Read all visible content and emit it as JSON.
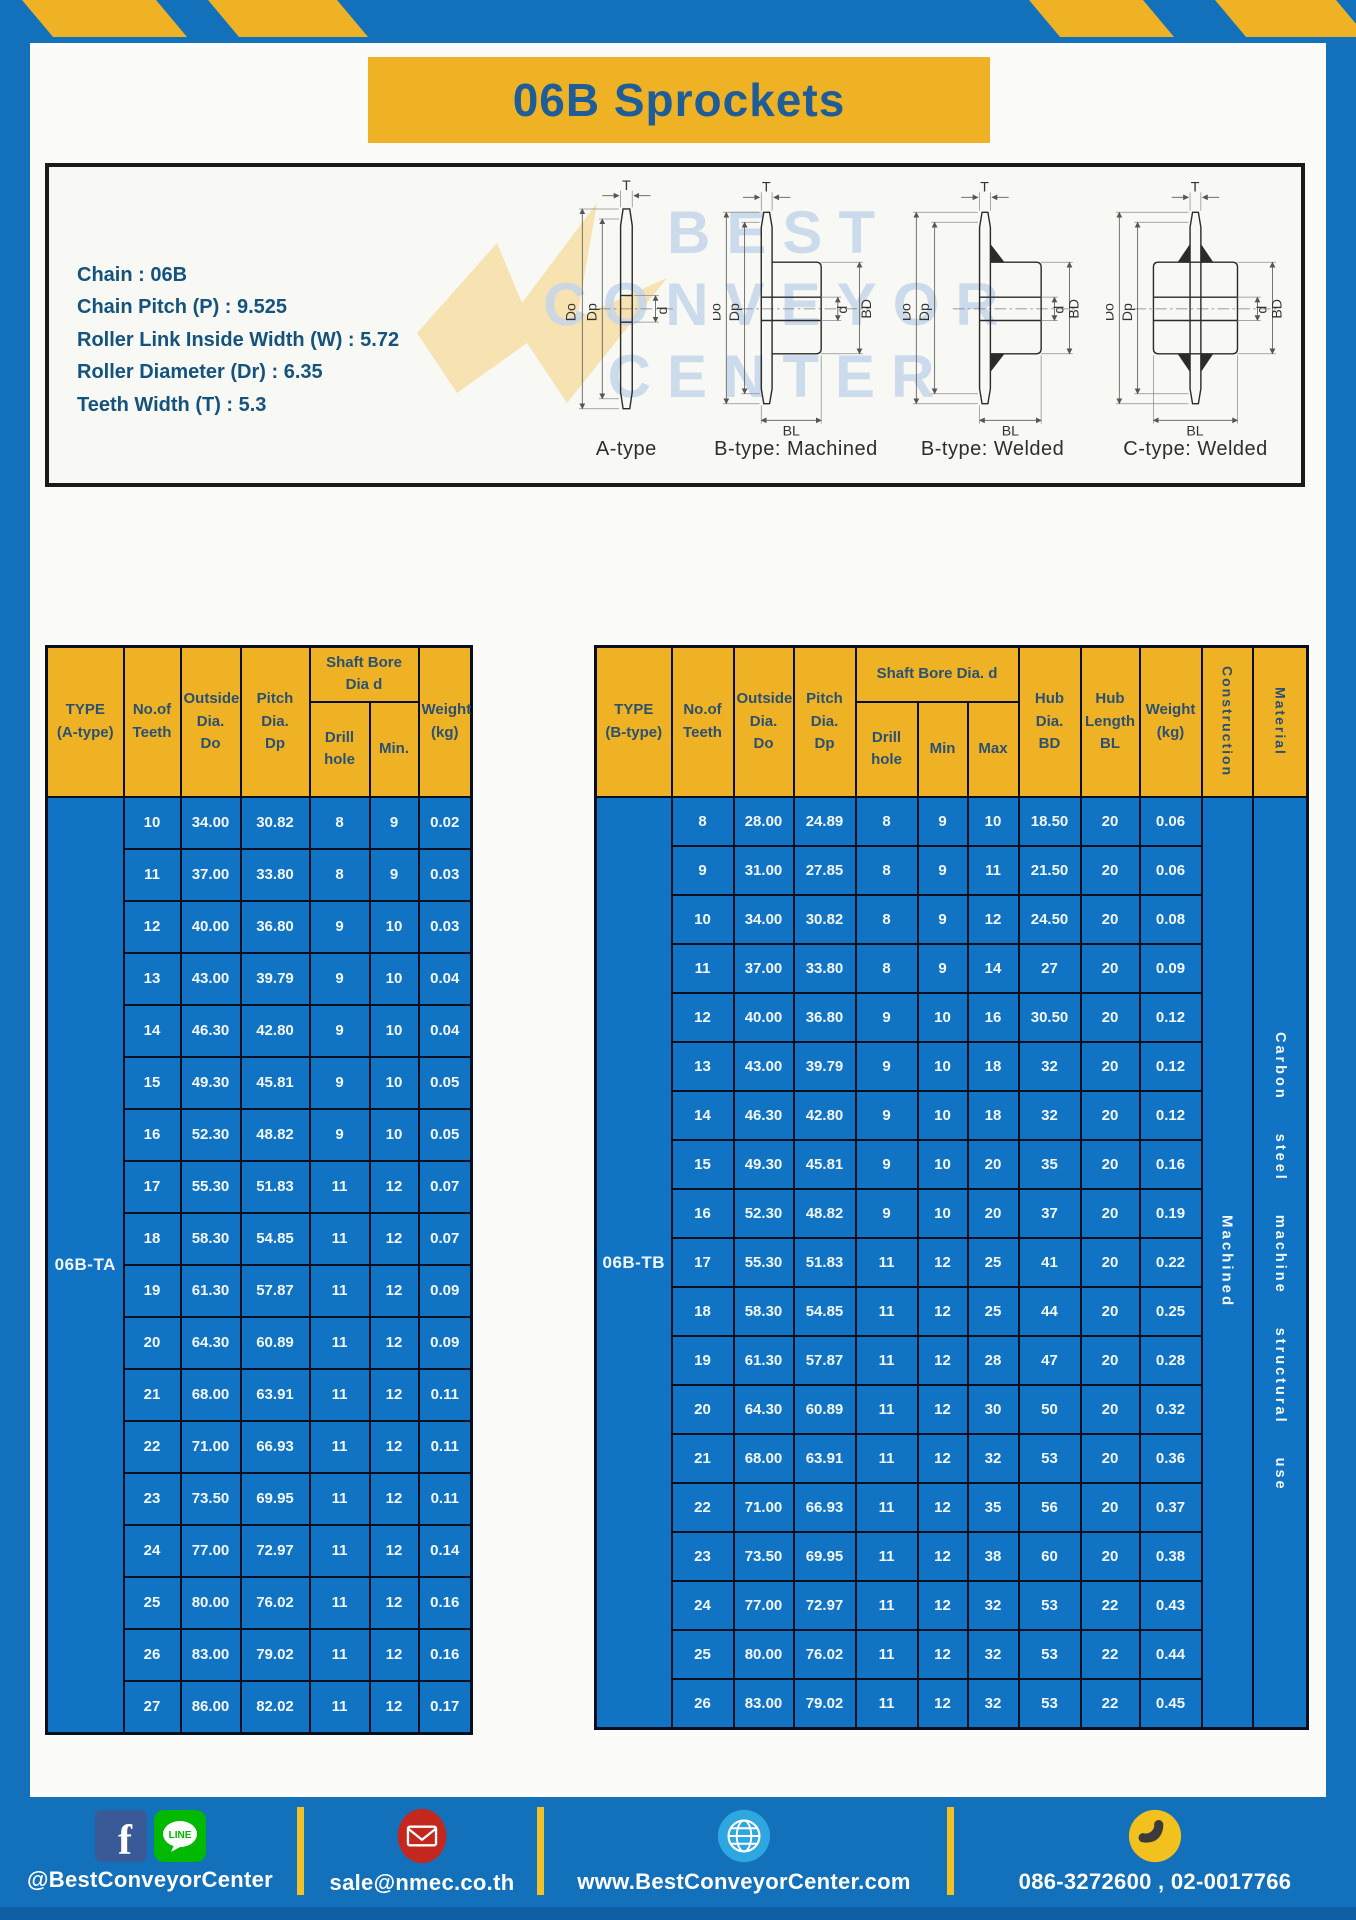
{
  "page": {
    "title": "06B Sprockets"
  },
  "specs": {
    "lines": [
      "Chain : 06B",
      "Chain Pitch (P) : 9.525",
      "Roller Link Inside Width (W) : 5.72",
      "Roller Diameter (Dr) : 6.35",
      "Teeth Width (T) : 5.3"
    ]
  },
  "diagrams": {
    "captions": [
      "A-type",
      "B-type: Machined",
      "B-type: Welded",
      "C-type: Welded"
    ],
    "labels": {
      "t": "T",
      "outside": "Do",
      "pitch": "Dp",
      "bore": "d",
      "hub_dia": "BD",
      "hub_len": "BL"
    },
    "watermark": [
      "BEST",
      "CONVEYOR",
      "CENTER"
    ]
  },
  "table_a": {
    "type_label": "06B-TA",
    "header": {
      "type": "TYPE\n(A-type)",
      "teeth": "No.of\nTeeth",
      "outside": "Outside\nDia.\nDo",
      "pitch": "Pitch Dia.\nDp",
      "shaft_group": "Shaft Bore Dia d",
      "drill": "Drill hole",
      "min": "Min.",
      "weight": "Weight\n(kg)"
    },
    "rows": [
      [
        "10",
        "34.00",
        "30.82",
        "8",
        "9",
        "0.02"
      ],
      [
        "11",
        "37.00",
        "33.80",
        "8",
        "9",
        "0.03"
      ],
      [
        "12",
        "40.00",
        "36.80",
        "9",
        "10",
        "0.03"
      ],
      [
        "13",
        "43.00",
        "39.79",
        "9",
        "10",
        "0.04"
      ],
      [
        "14",
        "46.30",
        "42.80",
        "9",
        "10",
        "0.04"
      ],
      [
        "15",
        "49.30",
        "45.81",
        "9",
        "10",
        "0.05"
      ],
      [
        "16",
        "52.30",
        "48.82",
        "9",
        "10",
        "0.05"
      ],
      [
        "17",
        "55.30",
        "51.83",
        "11",
        "12",
        "0.07"
      ],
      [
        "18",
        "58.30",
        "54.85",
        "11",
        "12",
        "0.07"
      ],
      [
        "19",
        "61.30",
        "57.87",
        "11",
        "12",
        "0.09"
      ],
      [
        "20",
        "64.30",
        "60.89",
        "11",
        "12",
        "0.09"
      ],
      [
        "21",
        "68.00",
        "63.91",
        "11",
        "12",
        "0.11"
      ],
      [
        "22",
        "71.00",
        "66.93",
        "11",
        "12",
        "0.11"
      ],
      [
        "23",
        "73.50",
        "69.95",
        "11",
        "12",
        "0.11"
      ],
      [
        "24",
        "77.00",
        "72.97",
        "11",
        "12",
        "0.14"
      ],
      [
        "25",
        "80.00",
        "76.02",
        "11",
        "12",
        "0.16"
      ],
      [
        "26",
        "83.00",
        "79.02",
        "11",
        "12",
        "0.16"
      ],
      [
        "27",
        "86.00",
        "82.02",
        "11",
        "12",
        "0.17"
      ]
    ]
  },
  "table_b": {
    "type_label": "06B-TB",
    "construction": "Machined",
    "material": "Carbon steel machine structural use",
    "header": {
      "type": "TYPE\n(B-type)",
      "teeth": "No.of\nTeeth",
      "outside": "Outside\nDia.\nDo",
      "pitch": "Pitch\nDia.\nDp",
      "shaft_group": "Shaft Bore Dia. d",
      "drill": "Drill hole",
      "min": "Min",
      "max": "Max",
      "hub_dia": "Hub\nDia.\nBD",
      "hub_len": "Hub\nLength\nBL",
      "weight": "Weight\n(kg)",
      "construction": "Construction",
      "material": "Material"
    },
    "rows": [
      [
        "8",
        "28.00",
        "24.89",
        "8",
        "9",
        "10",
        "18.50",
        "20",
        "0.06"
      ],
      [
        "9",
        "31.00",
        "27.85",
        "8",
        "9",
        "11",
        "21.50",
        "20",
        "0.06"
      ],
      [
        "10",
        "34.00",
        "30.82",
        "8",
        "9",
        "12",
        "24.50",
        "20",
        "0.08"
      ],
      [
        "11",
        "37.00",
        "33.80",
        "8",
        "9",
        "14",
        "27",
        "20",
        "0.09"
      ],
      [
        "12",
        "40.00",
        "36.80",
        "9",
        "10",
        "16",
        "30.50",
        "20",
        "0.12"
      ],
      [
        "13",
        "43.00",
        "39.79",
        "9",
        "10",
        "18",
        "32",
        "20",
        "0.12"
      ],
      [
        "14",
        "46.30",
        "42.80",
        "9",
        "10",
        "18",
        "32",
        "20",
        "0.12"
      ],
      [
        "15",
        "49.30",
        "45.81",
        "9",
        "10",
        "20",
        "35",
        "20",
        "0.16"
      ],
      [
        "16",
        "52.30",
        "48.82",
        "9",
        "10",
        "20",
        "37",
        "20",
        "0.19"
      ],
      [
        "17",
        "55.30",
        "51.83",
        "11",
        "12",
        "25",
        "41",
        "20",
        "0.22"
      ],
      [
        "18",
        "58.30",
        "54.85",
        "11",
        "12",
        "25",
        "44",
        "20",
        "0.25"
      ],
      [
        "19",
        "61.30",
        "57.87",
        "11",
        "12",
        "28",
        "47",
        "20",
        "0.28"
      ],
      [
        "20",
        "64.30",
        "60.89",
        "11",
        "12",
        "30",
        "50",
        "20",
        "0.32"
      ],
      [
        "21",
        "68.00",
        "63.91",
        "11",
        "12",
        "32",
        "53",
        "20",
        "0.36"
      ],
      [
        "22",
        "71.00",
        "66.93",
        "11",
        "12",
        "35",
        "56",
        "20",
        "0.37"
      ],
      [
        "23",
        "73.50",
        "69.95",
        "11",
        "12",
        "38",
        "60",
        "20",
        "0.38"
      ],
      [
        "24",
        "77.00",
        "72.97",
        "11",
        "12",
        "32",
        "53",
        "22",
        "0.43"
      ],
      [
        "25",
        "80.00",
        "76.02",
        "11",
        "12",
        "32",
        "53",
        "22",
        "0.44"
      ],
      [
        "26",
        "83.00",
        "79.02",
        "11",
        "12",
        "32",
        "53",
        "22",
        "0.45"
      ]
    ]
  },
  "footer": {
    "facebook_glyph": "f",
    "line_badge": "LINE",
    "social_handle": "@BestConveyorCenter",
    "email": "sale@nmec.co.th",
    "website": "www.BestConveyorCenter.com",
    "phones": "086-3272600 , 02-0017766"
  },
  "colors": {
    "page_blue": "#1371BB",
    "brand_yellow": "#EFB225",
    "table_blue": "#1173C4",
    "border_navy": "#0A0F1E",
    "title_text": "#1E5D97",
    "facebook_blue": "#3A5A97",
    "line_green": "#00B900",
    "mail_red": "#C3271E",
    "globe_blue": "#2EA7E0",
    "phone_yellow": "#F3C11E"
  }
}
